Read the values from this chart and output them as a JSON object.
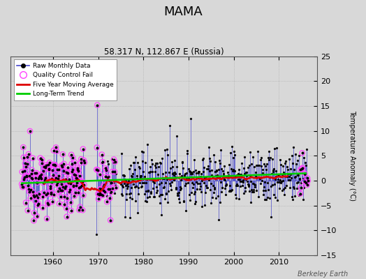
{
  "title": "MAMA",
  "subtitle": "58.317 N, 112.867 E (Russia)",
  "ylabel": "Temperature Anomaly (°C)",
  "watermark": "Berkeley Earth",
  "xlim": [
    1950.5,
    2018.5
  ],
  "ylim": [
    -15,
    25
  ],
  "yticks": [
    -15,
    -10,
    -5,
    0,
    5,
    10,
    15,
    20,
    25
  ],
  "xticks": [
    1960,
    1970,
    1980,
    1990,
    2000,
    2010
  ],
  "bg_color": "#d8d8d8",
  "plot_bg_color": "#d8d8d8",
  "raw_line_color": "#4444cc",
  "raw_marker_color": "#000000",
  "qc_fail_color": "#ff44ff",
  "moving_avg_color": "#dd0000",
  "trend_color": "#00cc00",
  "seed": 12345
}
